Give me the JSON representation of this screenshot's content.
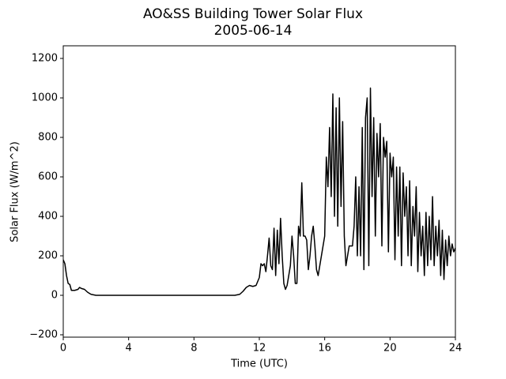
{
  "chart_data": {
    "type": "line",
    "title": "AO&SS Building Tower Solar Flux",
    "subtitle": "2005-06-14",
    "x_label": "Time (UTC)",
    "y_label": "Solar Flux (W/m^2)",
    "color": "#000000",
    "xlim": [
      0,
      24
    ],
    "xticks": [
      0,
      4,
      8,
      12,
      16,
      20,
      24
    ],
    "ylim": [
      -212,
      1264
    ],
    "yticks": [
      {
        "value": -200,
        "label": "−200"
      },
      0,
      200,
      400,
      600,
      800,
      1000,
      1200
    ],
    "x": [
      0,
      0.1,
      0.2,
      0.3,
      0.4,
      0.5,
      0.7,
      0.9,
      1.0,
      1.1,
      1.3,
      1.5,
      1.7,
      2.0,
      3,
      6,
      9,
      10.5,
      10.8,
      11,
      11.2,
      11.4,
      11.6,
      11.8,
      12.0,
      12.1,
      12.2,
      12.3,
      12.4,
      12.5,
      12.6,
      12.7,
      12.8,
      12.9,
      13.0,
      13.1,
      13.2,
      13.3,
      13.4,
      13.5,
      13.6,
      13.7,
      13.8,
      13.9,
      14.0,
      14.1,
      14.2,
      14.3,
      14.4,
      14.5,
      14.6,
      14.7,
      14.8,
      14.9,
      15.0,
      15.1,
      15.2,
      15.3,
      15.4,
      15.5,
      15.6,
      15.7,
      15.8,
      15.9,
      16.0,
      16.1,
      16.2,
      16.3,
      16.4,
      16.5,
      16.6,
      16.7,
      16.8,
      16.9,
      17.0,
      17.1,
      17.2,
      17.3,
      17.4,
      17.5,
      17.6,
      17.7,
      17.8,
      17.9,
      18.0,
      18.1,
      18.2,
      18.3,
      18.4,
      18.5,
      18.6,
      18.7,
      18.8,
      18.9,
      19.0,
      19.1,
      19.2,
      19.3,
      19.4,
      19.5,
      19.6,
      19.7,
      19.8,
      19.9,
      20.0,
      20.1,
      20.2,
      20.3,
      20.4,
      20.5,
      20.6,
      20.7,
      20.8,
      20.9,
      21.0,
      21.1,
      21.2,
      21.3,
      21.4,
      21.5,
      21.6,
      21.7,
      21.8,
      21.9,
      22.0,
      22.1,
      22.2,
      22.3,
      22.4,
      22.5,
      22.6,
      22.7,
      22.8,
      22.9,
      23.0,
      23.1,
      23.2,
      23.3,
      23.4,
      23.5,
      23.6,
      23.7,
      23.8,
      23.9,
      24.0
    ],
    "values": [
      180,
      160,
      100,
      60,
      55,
      25,
      25,
      30,
      40,
      35,
      30,
      15,
      5,
      0,
      0,
      0,
      0,
      0,
      5,
      20,
      40,
      50,
      45,
      50,
      90,
      160,
      150,
      160,
      120,
      200,
      290,
      150,
      130,
      340,
      100,
      330,
      160,
      390,
      200,
      60,
      30,
      50,
      100,
      150,
      300,
      200,
      60,
      60,
      350,
      300,
      570,
      300,
      300,
      280,
      130,
      200,
      300,
      350,
      250,
      130,
      100,
      150,
      200,
      250,
      300,
      700,
      550,
      850,
      500,
      1020,
      400,
      950,
      350,
      1000,
      450,
      880,
      300,
      150,
      200,
      250,
      250,
      250,
      350,
      600,
      200,
      550,
      200,
      850,
      130,
      900,
      1000,
      150,
      1050,
      500,
      900,
      300,
      820,
      600,
      870,
      250,
      800,
      700,
      780,
      220,
      720,
      600,
      700,
      180,
      650,
      300,
      650,
      150,
      620,
      400,
      550,
      200,
      580,
      150,
      450,
      300,
      550,
      120,
      420,
      200,
      350,
      100,
      420,
      150,
      400,
      180,
      500,
      150,
      350,
      200,
      380,
      100,
      330,
      80,
      280,
      150,
      300,
      200,
      260,
      220,
      240
    ]
  }
}
